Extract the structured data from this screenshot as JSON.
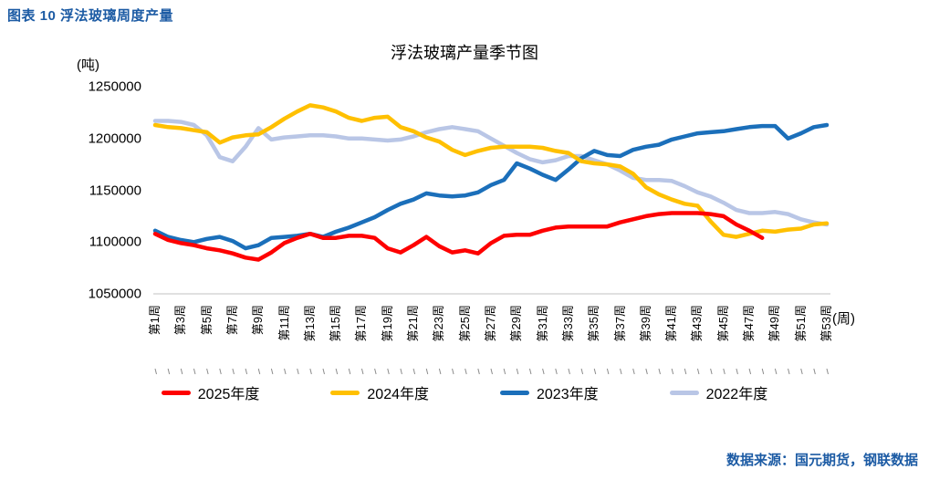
{
  "page": {
    "header": "图表 10 浮法玻璃周度产量",
    "source_note": "数据来源：国元期货，钢联数据"
  },
  "colors": {
    "header_blue": "#1C5BA4",
    "axis_line": "#D6D6D6",
    "tick_mark": "#8C8C8C"
  },
  "chart_data": {
    "type": "line",
    "title": "浮法玻璃产量季节图",
    "y_unit_label": "(吨)",
    "x_axis_suffix": "(周)",
    "xlabel": "周",
    "ylabel": "吨",
    "ylim": [
      1050000,
      1250000
    ],
    "y_ticks": [
      1250000,
      1200000,
      1150000,
      1100000,
      1050000
    ],
    "x_tick_labels": [
      "第1周",
      "第3周",
      "第5周",
      "第7周",
      "第9周",
      "第11周",
      "第13周",
      "第15周",
      "第17周",
      "第19周",
      "第21周",
      "第23周",
      "第25周",
      "第27周",
      "第29周",
      "第31周",
      "第33周",
      "第35周",
      "第37周",
      "第39周",
      "第41周",
      "第43周",
      "第45周",
      "第47周",
      "第49周",
      "第51周",
      "第53周"
    ],
    "x_range_weeks": [
      1,
      53
    ],
    "grid": false,
    "legend_position": "bottom",
    "series": [
      {
        "name": "2025年度",
        "color": "#FE0000",
        "values": [
          1108000,
          1102000,
          1099000,
          1097000,
          1094000,
          1092000,
          1089000,
          1085000,
          1083000,
          1090000,
          1099000,
          1104000,
          1108000,
          1104000,
          1104000,
          1106000,
          1106000,
          1104000,
          1094000,
          1090000,
          1097000,
          1105000,
          1096000,
          1090000,
          1092000,
          1089000,
          1099000,
          1106000,
          1107000,
          1107000,
          1111000,
          1114000,
          1115000,
          1115000,
          1115000,
          1115000,
          1119000,
          1122000,
          1125000,
          1127000,
          1128000,
          1128000,
          1128000,
          1127000,
          1125000,
          1117000,
          1111000,
          1104000
        ]
      },
      {
        "name": "2024年度",
        "color": "#FFC000",
        "values": [
          1213000,
          1211000,
          1210000,
          1208000,
          1206000,
          1196000,
          1201000,
          1203000,
          1204000,
          1211000,
          1219000,
          1226000,
          1232000,
          1230000,
          1226000,
          1220000,
          1217000,
          1220000,
          1221000,
          1211000,
          1207000,
          1201000,
          1197000,
          1189000,
          1184000,
          1188000,
          1191000,
          1192000,
          1192000,
          1192000,
          1191000,
          1188000,
          1186000,
          1178000,
          1176000,
          1175000,
          1173000,
          1166000,
          1153000,
          1146000,
          1141000,
          1137000,
          1135000,
          1120000,
          1107000,
          1105000,
          1108000,
          1111000,
          1110000,
          1112000,
          1113000,
          1117000,
          1118000
        ]
      },
      {
        "name": "2023年度",
        "color": "#1B6FBA",
        "values": [
          1111000,
          1105000,
          1102000,
          1100000,
          1103000,
          1105000,
          1101000,
          1094000,
          1097000,
          1104000,
          1105000,
          1106000,
          1108000,
          1105000,
          1110000,
          1114000,
          1119000,
          1124000,
          1131000,
          1137000,
          1141000,
          1147000,
          1145000,
          1144000,
          1145000,
          1148000,
          1155000,
          1160000,
          1176000,
          1171000,
          1165000,
          1160000,
          1170000,
          1181000,
          1188000,
          1184000,
          1183000,
          1189000,
          1192000,
          1194000,
          1199000,
          1202000,
          1205000,
          1206000,
          1207000,
          1209000,
          1211000,
          1212000,
          1212000,
          1200000,
          1205000,
          1211000,
          1213000
        ]
      },
      {
        "name": "2022年度",
        "color": "#B9C6E6",
        "values": [
          1217000,
          1217000,
          1216000,
          1213000,
          1203000,
          1182000,
          1178000,
          1192000,
          1210000,
          1199000,
          1201000,
          1202000,
          1203000,
          1203000,
          1202000,
          1200000,
          1200000,
          1199000,
          1198000,
          1199000,
          1202000,
          1206000,
          1209000,
          1211000,
          1209000,
          1207000,
          1200000,
          1193000,
          1186000,
          1180000,
          1177000,
          1179000,
          1183000,
          1183000,
          1179000,
          1175000,
          1169000,
          1162000,
          1160000,
          1160000,
          1159000,
          1154000,
          1148000,
          1144000,
          1138000,
          1131000,
          1128000,
          1128000,
          1129000,
          1127000,
          1122000,
          1119000,
          1117000
        ]
      }
    ]
  }
}
